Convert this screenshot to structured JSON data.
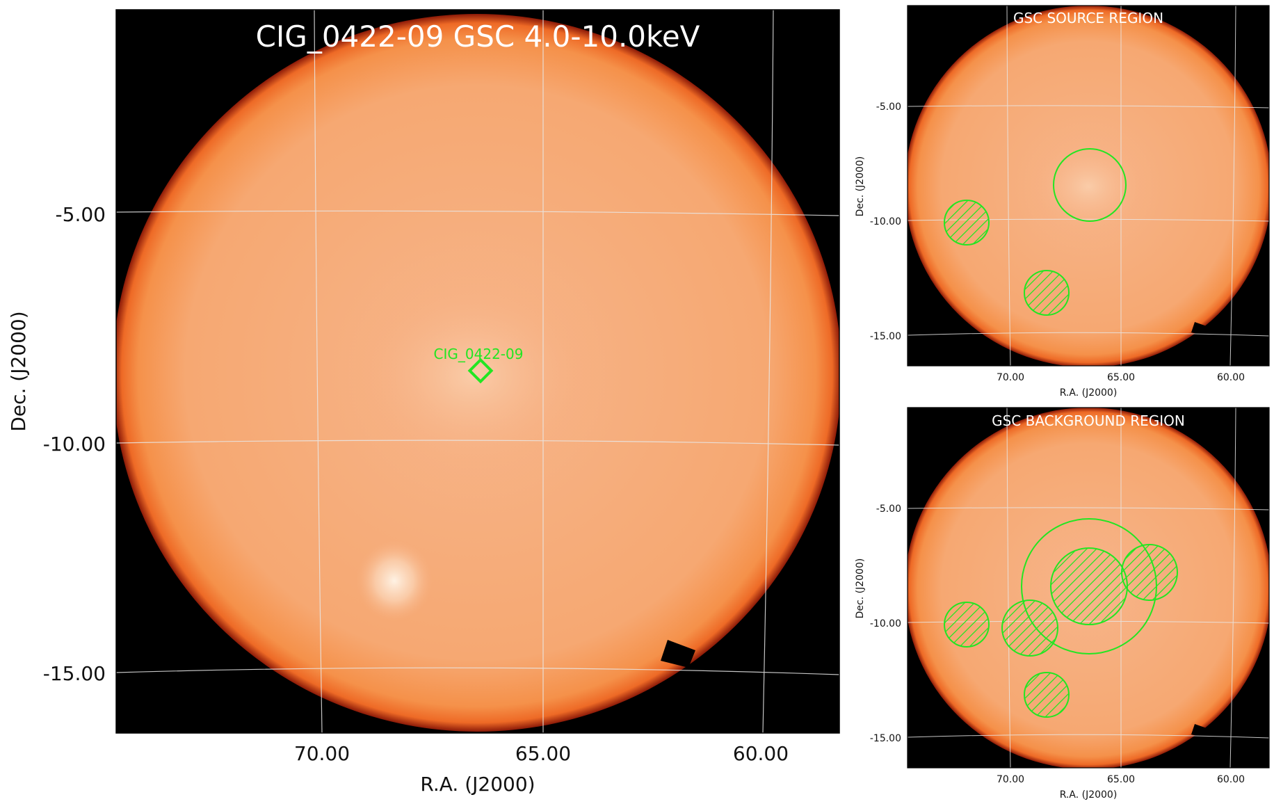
{
  "main": {
    "title": "CIG_0422-09 GSC 4.0-10.0keV",
    "xlabel": "R.A. (J2000)",
    "ylabel": "Dec. (J2000)",
    "xticks": [
      "70.00",
      "65.00",
      "60.00"
    ],
    "yticks": [
      "-5.00",
      "-10.00",
      "-15.00"
    ],
    "source_label": "CIG_0422-09"
  },
  "source_panel": {
    "title": "GSC SOURCE REGION",
    "xlabel": "R.A. (J2000)",
    "ylabel": "Dec. (J2000)",
    "xticks": [
      "70.00",
      "65.00",
      "60.00"
    ],
    "yticks": [
      "-5.00",
      "-10.00",
      "-15.00"
    ]
  },
  "background_panel": {
    "title": "GSC BACKGROUND REGION",
    "xlabel": "R.A. (J2000)",
    "ylabel": "Dec. (J2000)",
    "xticks": [
      "70.00",
      "65.00",
      "60.00"
    ],
    "yticks": [
      "-5.00",
      "-10.00",
      "-15.00"
    ]
  },
  "colors": {
    "field": "#f58a3a",
    "edge": "#c8321a",
    "background": "#000000",
    "grid": "#e8e8e8",
    "region": "#22e622"
  }
}
